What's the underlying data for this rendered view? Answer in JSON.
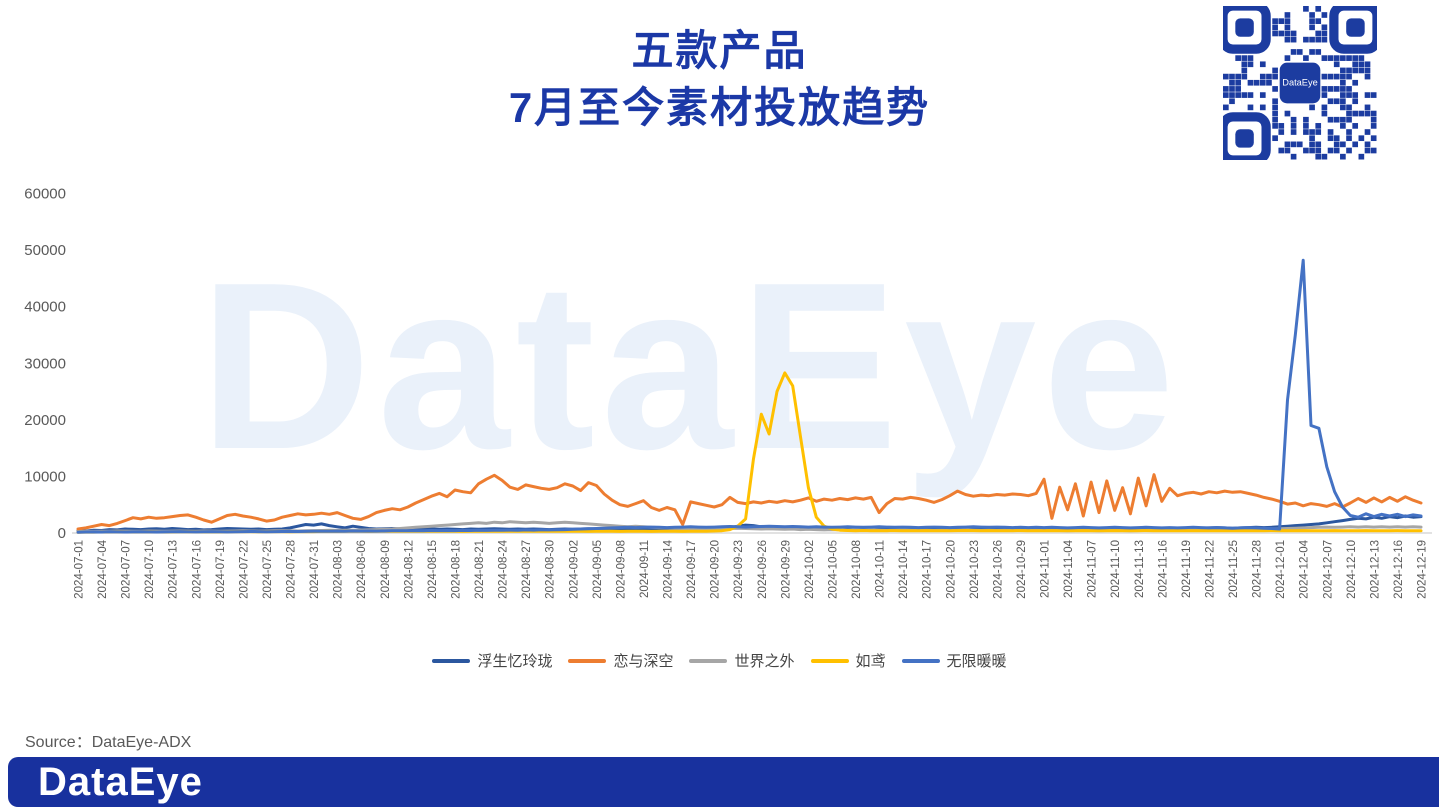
{
  "page": {
    "title_line1": "五款产品",
    "title_line2": "7月至今素材投放趋势",
    "source_label": "Source：DataEye-ADX",
    "footer_logo": "DataEye",
    "watermark": "DataEye",
    "qr_center_label": "DataEye"
  },
  "colors": {
    "title": "#1B38A6",
    "axis_text": "#595959",
    "tick_text": "#595959",
    "baseline": "#D9D9D9",
    "watermark": "#EAF1FA",
    "footer_bar": "#18319E",
    "qr_blue": "#1C3CA0"
  },
  "chart_data": {
    "type": "line",
    "title": "五款产品 7月至今素材投放趋势",
    "xlabel": "",
    "ylabel": "",
    "ylim": [
      0,
      60000
    ],
    "y_ticks": [
      0,
      10000,
      20000,
      30000,
      40000,
      50000,
      60000
    ],
    "grid": false,
    "legend_position": "bottom",
    "x_start_date": "2024-07-01",
    "x_end_date": "2024-12-19",
    "x_frequency": "daily",
    "x_tick_labels": [
      "2024-07-01",
      "2024-07-04",
      "2024-07-07",
      "2024-07-10",
      "2024-07-13",
      "2024-07-16",
      "2024-07-19",
      "2024-07-22",
      "2024-07-25",
      "2024-07-28",
      "2024-07-31",
      "2024-08-03",
      "2024-08-06",
      "2024-08-09",
      "2024-08-12",
      "2024-08-15",
      "2024-08-18",
      "2024-08-21",
      "2024-08-24",
      "2024-08-27",
      "2024-08-30",
      "2024-09-02",
      "2024-09-05",
      "2024-09-08",
      "2024-09-11",
      "2024-09-14",
      "2024-09-17",
      "2024-09-20",
      "2024-09-23",
      "2024-09-26",
      "2024-09-29",
      "2024-10-02",
      "2024-10-05",
      "2024-10-08",
      "2024-10-11",
      "2024-10-14",
      "2024-10-17",
      "2024-10-20",
      "2024-10-23",
      "2024-10-26",
      "2024-10-29",
      "2024-11-01",
      "2024-11-04",
      "2024-11-07",
      "2024-11-10",
      "2024-11-13",
      "2024-11-16",
      "2024-11-19",
      "2024-11-22",
      "2024-11-25",
      "2024-11-28",
      "2024-12-01",
      "2024-12-04",
      "2024-12-07",
      "2024-12-10",
      "2024-12-13",
      "2024-12-16",
      "2024-12-19"
    ],
    "series": [
      {
        "name": "浮生忆玲珑",
        "color": "#2B579F",
        "values": [
          400,
          350,
          500,
          450,
          600,
          550,
          700,
          650,
          600,
          700,
          750,
          650,
          800,
          700,
          600,
          650,
          550,
          600,
          700,
          800,
          750,
          700,
          650,
          700,
          600,
          650,
          700,
          900,
          1200,
          1500,
          1400,
          1600,
          1300,
          1100,
          900,
          1200,
          1000,
          800,
          700,
          750,
          800,
          700,
          650,
          700,
          750,
          700,
          650,
          700,
          650,
          600,
          700,
          650,
          700,
          750,
          700,
          650,
          700,
          650,
          700,
          650,
          600,
          650,
          700,
          650,
          700,
          750,
          700,
          650,
          600,
          650,
          700,
          650,
          700,
          650,
          600,
          650,
          700,
          650,
          600,
          650,
          700,
          750,
          800,
          900,
          1200,
          1400,
          1300,
          1100,
          900,
          800,
          750,
          700,
          800,
          900,
          850,
          800,
          750,
          800,
          850,
          800,
          750,
          800,
          850,
          900,
          850,
          800,
          750,
          800,
          850,
          800,
          750,
          800,
          900,
          850,
          800,
          850,
          800,
          750,
          800,
          850,
          900,
          850,
          800,
          750,
          800,
          850,
          800,
          750,
          700,
          750,
          800,
          750,
          700,
          750,
          800,
          850,
          800,
          750,
          800,
          850,
          800,
          750,
          800,
          850,
          900,
          950,
          900,
          850,
          900,
          950,
          1000,
          950,
          1000,
          1100,
          1200,
          1300,
          1400,
          1500,
          1600,
          1800,
          2000,
          2200,
          2400,
          2600,
          2500,
          2800,
          2600,
          2900,
          2700,
          3000,
          2800,
          2900
        ]
      },
      {
        "name": "恋与深空",
        "color": "#ED7D31",
        "values": [
          700,
          900,
          1200,
          1500,
          1300,
          1700,
          2200,
          2700,
          2500,
          2800,
          2600,
          2700,
          2900,
          3100,
          3200,
          2800,
          2300,
          1900,
          2500,
          3100,
          3300,
          3000,
          2800,
          2500,
          2100,
          2300,
          2800,
          3100,
          3400,
          3200,
          3300,
          3500,
          3300,
          3600,
          3100,
          2600,
          2400,
          2900,
          3600,
          4000,
          4300,
          4100,
          4600,
          5300,
          5900,
          6500,
          7000,
          6400,
          7600,
          7300,
          7100,
          8700,
          9500,
          10200,
          9300,
          8100,
          7700,
          8500,
          8200,
          7900,
          7700,
          8000,
          8700,
          8300,
          7500,
          8900,
          8400,
          6900,
          5800,
          5000,
          4700,
          5200,
          5700,
          4500,
          4000,
          4500,
          4100,
          1500,
          5500,
          5200,
          4900,
          4600,
          5000,
          6300,
          5400,
          5200,
          5500,
          5300,
          5600,
          5400,
          5700,
          5500,
          5800,
          6200,
          5600,
          6000,
          5800,
          6100,
          5900,
          6200,
          6000,
          6300,
          3600,
          5200,
          6100,
          6000,
          6300,
          6100,
          5800,
          5400,
          5900,
          6600,
          7400,
          6800,
          6500,
          6700,
          6600,
          6800,
          6700,
          6900,
          6800,
          6600,
          7000,
          9500,
          2600,
          8100,
          4100,
          8700,
          3000,
          9000,
          3600,
          9200,
          4000,
          8000,
          3400,
          9700,
          4800,
          10300,
          5600,
          7900,
          6600,
          7000,
          7200,
          6900,
          7300,
          7100,
          7400,
          7200,
          7300,
          7000,
          6700,
          6300,
          6000,
          5600,
          5100,
          5300,
          4800,
          5200,
          5000,
          4700,
          5200,
          4600,
          5300,
          6100,
          5400,
          6200,
          5500,
          6300,
          5600,
          6400,
          5800,
          5300
        ]
      },
      {
        "name": "世界之外",
        "color": "#A6A6A6",
        "values": [
          250,
          300,
          280,
          320,
          300,
          350,
          330,
          300,
          320,
          350,
          330,
          310,
          340,
          360,
          340,
          320,
          350,
          330,
          310,
          340,
          360,
          380,
          350,
          330,
          360,
          380,
          400,
          380,
          360,
          400,
          420,
          450,
          480,
          460,
          500,
          480,
          520,
          550,
          600,
          650,
          700,
          800,
          900,
          1000,
          1100,
          1200,
          1300,
          1400,
          1500,
          1600,
          1700,
          1800,
          1700,
          1900,
          1800,
          2000,
          1900,
          1800,
          1900,
          1800,
          1700,
          1800,
          1900,
          1800,
          1700,
          1600,
          1500,
          1400,
          1300,
          1200,
          1100,
          1200,
          1100,
          1000,
          950,
          900,
          850,
          800,
          750,
          800,
          750,
          700,
          750,
          800,
          850,
          800,
          750,
          700,
          750,
          700,
          650,
          700,
          600,
          650,
          600,
          550,
          600,
          550,
          500,
          550,
          500,
          550,
          500,
          450,
          500,
          550,
          500,
          450,
          500,
          450,
          500,
          450,
          500,
          550,
          500,
          450,
          500,
          450,
          500,
          450,
          500,
          450,
          500,
          450,
          500,
          450,
          400,
          450,
          500,
          450,
          400,
          450,
          500,
          450,
          400,
          450,
          500,
          550,
          500,
          450,
          500,
          550,
          600,
          550,
          500,
          550,
          600,
          650,
          600,
          650,
          700,
          650,
          700,
          750,
          800,
          850,
          900,
          950,
          1000,
          1050,
          1000,
          1050,
          1100,
          1050,
          1100,
          1050,
          1100,
          1050,
          1100,
          1050,
          1100,
          1050
        ]
      },
      {
        "name": "如鸢",
        "color": "#FFC000",
        "values": [
          150,
          180,
          160,
          200,
          180,
          220,
          200,
          180,
          200,
          220,
          200,
          180,
          200,
          220,
          240,
          220,
          200,
          220,
          200,
          220,
          240,
          260,
          240,
          220,
          240,
          260,
          240,
          220,
          240,
          260,
          240,
          280,
          300,
          280,
          300,
          320,
          300,
          280,
          300,
          320,
          340,
          320,
          300,
          320,
          340,
          320,
          300,
          320,
          300,
          280,
          300,
          320,
          340,
          320,
          300,
          320,
          340,
          320,
          300,
          320,
          300,
          320,
          300,
          320,
          300,
          280,
          300,
          320,
          300,
          280,
          300,
          320,
          300,
          280,
          300,
          320,
          300,
          280,
          300,
          320,
          300,
          350,
          400,
          600,
          1200,
          2500,
          13000,
          21000,
          17500,
          25000,
          28300,
          26000,
          17000,
          8000,
          2800,
          1200,
          700,
          500,
          450,
          400,
          450,
          400,
          380,
          400,
          420,
          400,
          380,
          400,
          420,
          400,
          380,
          400,
          420,
          440,
          420,
          400,
          420,
          400,
          380,
          400,
          420,
          400,
          380,
          400,
          420,
          400,
          380,
          400,
          420,
          400,
          380,
          400,
          420,
          400,
          380,
          400,
          420,
          400,
          380,
          400,
          420,
          400,
          380,
          400,
          420,
          400,
          380,
          400,
          420,
          400,
          380,
          400,
          420,
          400,
          380,
          400,
          420,
          400,
          380,
          400,
          420,
          400,
          380,
          400,
          420,
          400,
          380,
          400,
          420,
          400,
          380,
          400
        ]
      },
      {
        "name": "无限暖暖",
        "color": "#4472C4",
        "values": [
          150,
          180,
          200,
          180,
          220,
          200,
          180,
          200,
          220,
          200,
          180,
          200,
          220,
          240,
          220,
          200,
          220,
          240,
          220,
          200,
          220,
          240,
          260,
          240,
          220,
          240,
          260,
          280,
          260,
          280,
          300,
          320,
          300,
          340,
          320,
          350,
          330,
          360,
          340,
          360,
          380,
          400,
          380,
          420,
          400,
          440,
          420,
          450,
          430,
          460,
          440,
          480,
          460,
          500,
          480,
          520,
          500,
          540,
          520,
          560,
          540,
          580,
          600,
          650,
          700,
          750,
          800,
          850,
          900,
          950,
          1000,
          950,
          1000,
          1050,
          1000,
          950,
          1000,
          1050,
          1100,
          1050,
          1000,
          1050,
          1100,
          1150,
          1100,
          1050,
          1100,
          1150,
          1200,
          1150,
          1100,
          1150,
          1100,
          1050,
          1100,
          1050,
          1000,
          1050,
          1100,
          1050,
          1000,
          1050,
          1100,
          1050,
          1000,
          1050,
          1000,
          950,
          1000,
          1050,
          1000,
          950,
          1000,
          1050,
          1100,
          1050,
          1000,
          1050,
          1000,
          950,
          1000,
          950,
          1000,
          950,
          1000,
          950,
          900,
          950,
          1000,
          950,
          900,
          950,
          1000,
          950,
          900,
          950,
          1000,
          950,
          900,
          950,
          900,
          950,
          1000,
          950,
          900,
          950,
          900,
          850,
          900,
          950,
          900,
          850,
          800,
          700,
          23500,
          35000,
          48200,
          19000,
          18500,
          11700,
          7300,
          4600,
          3100,
          2800,
          3400,
          2900,
          3300,
          3000,
          3300,
          2900,
          3200,
          3000
        ]
      }
    ]
  }
}
